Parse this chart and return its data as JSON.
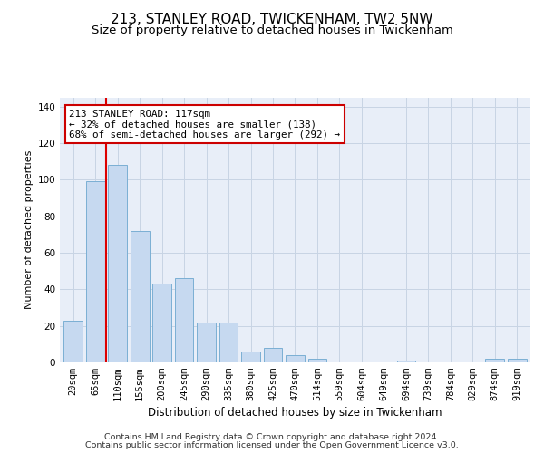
{
  "title1": "213, STANLEY ROAD, TWICKENHAM, TW2 5NW",
  "title2": "Size of property relative to detached houses in Twickenham",
  "xlabel": "Distribution of detached houses by size in Twickenham",
  "ylabel": "Number of detached properties",
  "categories": [
    "20sqm",
    "65sqm",
    "110sqm",
    "155sqm",
    "200sqm",
    "245sqm",
    "290sqm",
    "335sqm",
    "380sqm",
    "425sqm",
    "470sqm",
    "514sqm",
    "559sqm",
    "604sqm",
    "649sqm",
    "694sqm",
    "739sqm",
    "784sqm",
    "829sqm",
    "874sqm",
    "919sqm"
  ],
  "values": [
    23,
    99,
    108,
    72,
    43,
    46,
    22,
    22,
    6,
    8,
    4,
    2,
    0,
    0,
    0,
    1,
    0,
    0,
    0,
    2,
    2
  ],
  "bar_color": "#c6d9f0",
  "bar_edge_color": "#7bafd4",
  "red_line_x": 1.5,
  "annotation_line1": "213 STANLEY ROAD: 117sqm",
  "annotation_line2": "← 32% of detached houses are smaller (138)",
  "annotation_line3": "68% of semi-detached houses are larger (292) →",
  "ylim": [
    0,
    145
  ],
  "yticks": [
    0,
    20,
    40,
    60,
    80,
    100,
    120,
    140
  ],
  "grid_color": "#c8d4e4",
  "background_color": "#e8eef8",
  "footer1": "Contains HM Land Registry data © Crown copyright and database right 2024.",
  "footer2": "Contains public sector information licensed under the Open Government Licence v3.0.",
  "title1_fontsize": 11,
  "title2_fontsize": 9.5,
  "xlabel_fontsize": 8.5,
  "ylabel_fontsize": 8.0,
  "tick_fontsize": 7.5,
  "annotation_fontsize": 7.8,
  "footer_fontsize": 6.8
}
